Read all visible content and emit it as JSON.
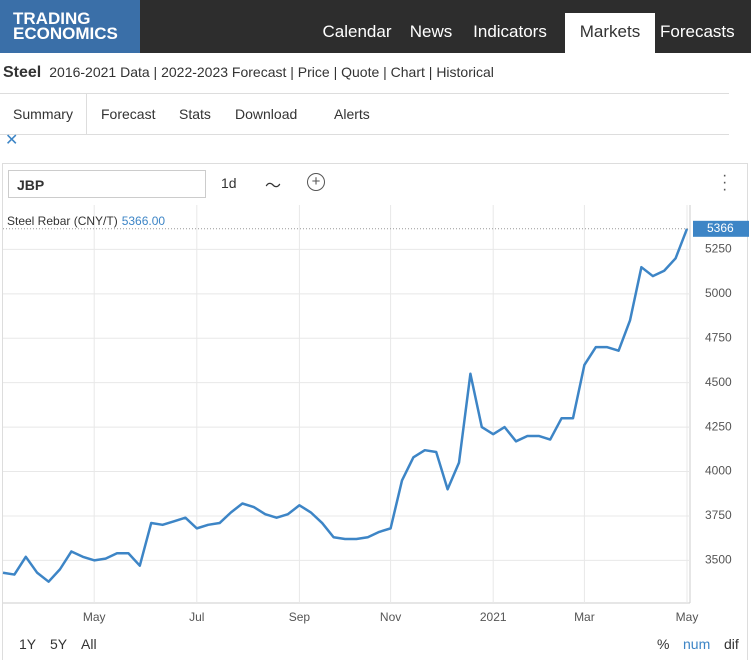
{
  "header": {
    "logo": [
      "TRADING",
      "ECONOMICS"
    ],
    "nav": [
      "Calendar",
      "News",
      "Indicators",
      "Markets",
      "Forecasts"
    ]
  },
  "breadcrumb": {
    "title": "Steel",
    "links": "2016-2021 Data | 2022-2023 Forecast | Price | Quote | Chart | Historical"
  },
  "tabs": [
    "Summary",
    "Forecast",
    "Stats",
    "Download",
    "Alerts"
  ],
  "toolbar": {
    "symbol": "JBP",
    "interval": "1d"
  },
  "ranges": [
    "1Y",
    "5Y",
    "All"
  ],
  "modes": [
    "%",
    "num",
    "dif"
  ],
  "chart_data": {
    "type": "line",
    "legend_label": "Steel Rebar (CNY/T)",
    "legend_value": "5366.00",
    "categories": [
      null,
      null,
      null,
      null,
      null,
      null,
      null,
      null,
      "May",
      null,
      null,
      null,
      null,
      null,
      null,
      null,
      null,
      "Jul",
      null,
      null,
      null,
      null,
      null,
      null,
      null,
      null,
      "Sep",
      null,
      null,
      null,
      null,
      null,
      null,
      null,
      "Nov",
      null,
      null,
      null,
      null,
      null,
      null,
      null,
      null,
      "2021",
      null,
      null,
      null,
      null,
      null,
      null,
      null,
      "Mar",
      null,
      null,
      null,
      null,
      null,
      null,
      null,
      null,
      "May"
    ],
    "series": [
      {
        "name": "Steel Rebar (CNY/T)",
        "color": "#3d85c6",
        "values": [
          3430,
          3420,
          3520,
          3430,
          3380,
          3450,
          3550,
          3520,
          3500,
          3510,
          3540,
          3540,
          3470,
          3710,
          3700,
          3720,
          3740,
          3680,
          3700,
          3710,
          3770,
          3820,
          3800,
          3760,
          3740,
          3760,
          3810,
          3770,
          3710,
          3630,
          3620,
          3620,
          3630,
          3660,
          3680,
          3950,
          4080,
          4120,
          4110,
          3900,
          4050,
          4550,
          4250,
          4210,
          4250,
          4170,
          4200,
          4200,
          4180,
          4300,
          4300,
          4600,
          4700,
          4700,
          4680,
          4850,
          5150,
          5100,
          5130,
          5200,
          5366
        ]
      }
    ],
    "ylim": [
      3260,
      5500
    ],
    "yticks": [
      3500,
      3750,
      4000,
      4250,
      4500,
      4750,
      5000,
      5250
    ],
    "grid": true
  }
}
